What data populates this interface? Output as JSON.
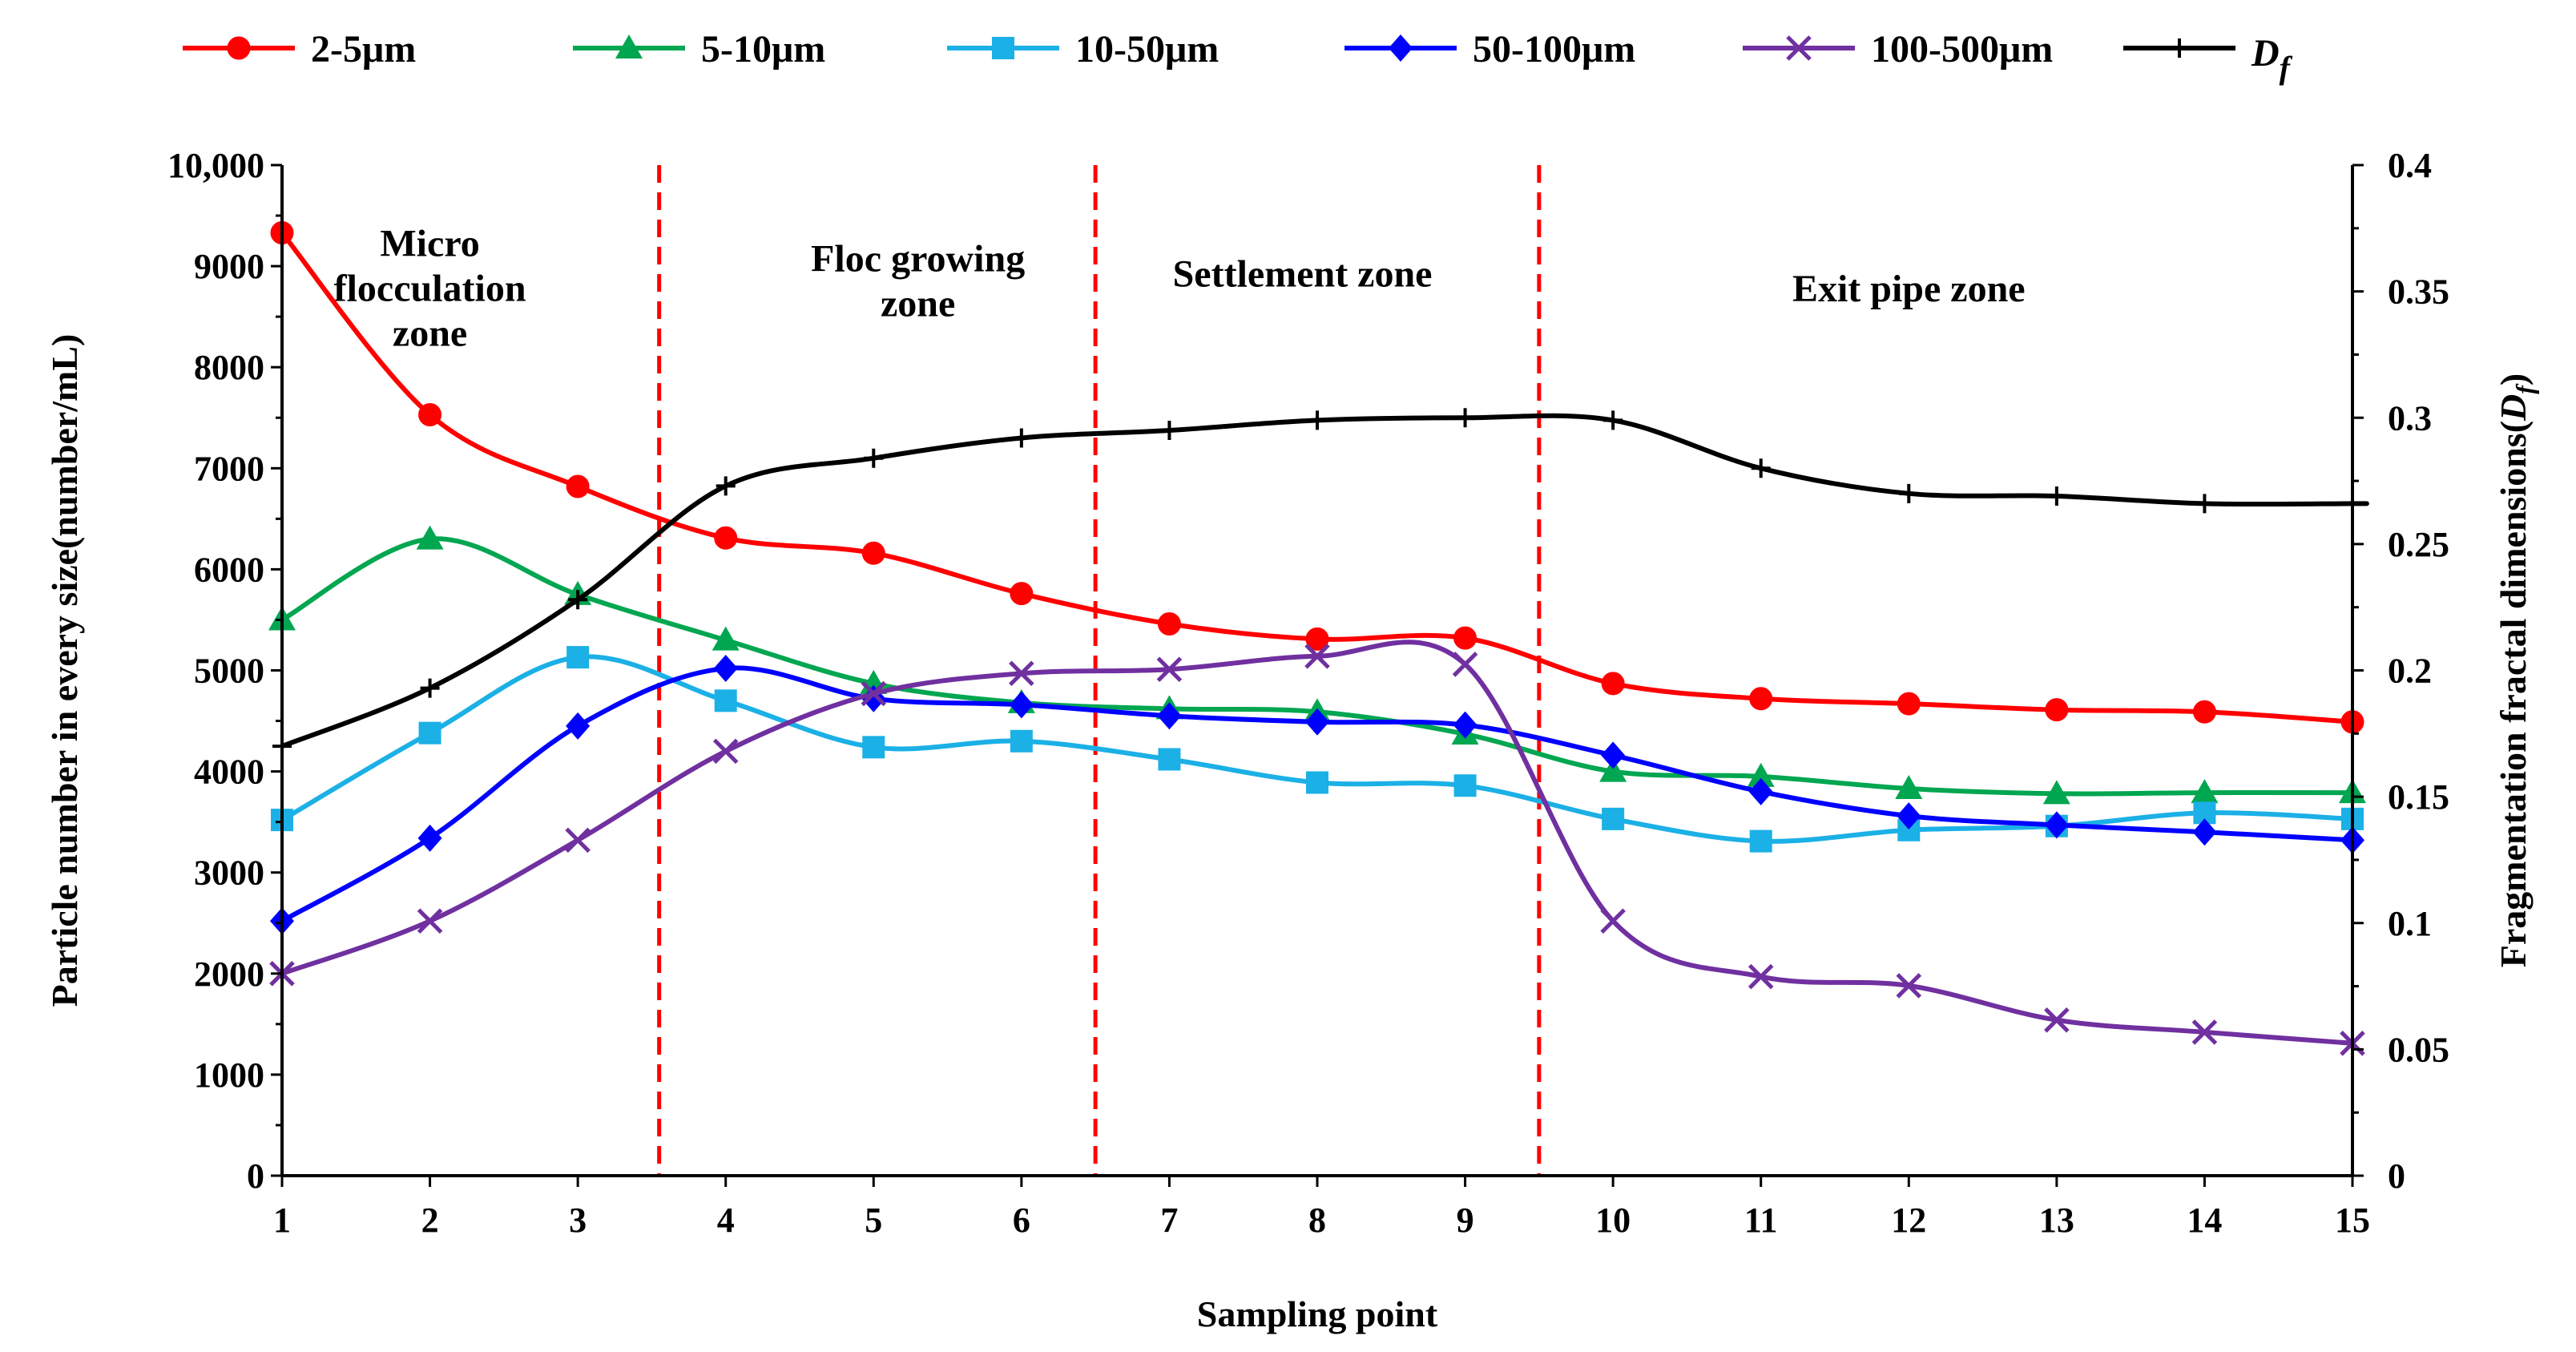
{
  "chart_data": {
    "type": "line",
    "x": [
      1,
      2,
      3,
      4,
      5,
      6,
      7,
      8,
      9,
      10,
      11,
      12,
      13,
      14,
      15
    ],
    "x_ticks": [
      "1",
      "2",
      "3",
      "4",
      "5",
      "6",
      "7",
      "8",
      "9",
      "10",
      "11",
      "12",
      "13",
      "14",
      "15"
    ],
    "xlabel": "Sampling point",
    "ylabel": "Particle number in every size(number/mL)",
    "y2label_prefix": "Fragmentation fractal dimensions(",
    "y2label_var": "D",
    "y2label_sub": "f",
    "y2label_suffix": ")",
    "ylim": [
      0,
      10000
    ],
    "y2lim": [
      0,
      0.4
    ],
    "y_ticks": [
      "0",
      "1000",
      "2000",
      "3000",
      "4000",
      "5000",
      "6000",
      "7000",
      "8000",
      "9000",
      "10,000"
    ],
    "y2_ticks": [
      "0",
      "0.05",
      "0.1",
      "0.15",
      "0.2",
      "0.25",
      "0.3",
      "0.35",
      "0.4"
    ],
    "y_tick_values": [
      0,
      1000,
      2000,
      3000,
      4000,
      5000,
      6000,
      7000,
      8000,
      9000,
      10000
    ],
    "y2_tick_values": [
      0,
      0.05,
      0.1,
      0.15,
      0.2,
      0.25,
      0.3,
      0.35,
      0.4
    ],
    "series": [
      {
        "name": "2-5μm",
        "color": "#ff0000",
        "marker": "circle",
        "axis": "left",
        "values": [
          9330,
          7530,
          6820,
          6310,
          6160,
          5760,
          5460,
          5310,
          5320,
          4870,
          4720,
          4670,
          4610,
          4590,
          4490
        ]
      },
      {
        "name": "5-10μm",
        "color": "#00a650",
        "marker": "triangle",
        "axis": "left",
        "values": [
          5500,
          6300,
          5750,
          5300,
          4870,
          4680,
          4620,
          4590,
          4370,
          4000,
          3950,
          3830,
          3780,
          3790,
          3790
        ]
      },
      {
        "name": "10-50μm",
        "color": "#1bb0e6",
        "marker": "square",
        "axis": "left",
        "values": [
          3520,
          4380,
          5130,
          4700,
          4240,
          4300,
          4120,
          3890,
          3860,
          3530,
          3310,
          3420,
          3460,
          3590,
          3530
        ]
      },
      {
        "name": "50-100μm",
        "color": "#0000ff",
        "marker": "diamond",
        "axis": "left",
        "values": [
          2520,
          3340,
          4450,
          5020,
          4720,
          4660,
          4550,
          4490,
          4460,
          4160,
          3800,
          3560,
          3470,
          3400,
          3320
        ]
      },
      {
        "name": "100-500μm",
        "color": "#7030a0",
        "marker": "x",
        "axis": "left",
        "values": [
          2000,
          2520,
          3320,
          4200,
          4770,
          4970,
          5010,
          5140,
          5060,
          2520,
          1970,
          1880,
          1540,
          1420,
          1310
        ]
      },
      {
        "name": "Df",
        "color": "#000000",
        "marker": "plus",
        "axis": "right",
        "values": [
          0.17,
          0.193,
          0.228,
          0.273,
          0.284,
          0.292,
          0.295,
          0.299,
          0.3,
          0.299,
          0.28,
          0.27,
          0.269,
          0.266,
          0.266
        ]
      }
    ],
    "legend": {
      "position": "top",
      "entries": [
        {
          "label": "2-5μm"
        },
        {
          "label": "5-10μm"
        },
        {
          "label": "10-50μm"
        },
        {
          "label": "50-100μm"
        },
        {
          "label": "100-500μm"
        },
        {
          "label_var": "D",
          "label_sub": "f"
        }
      ]
    },
    "zone_dividers_x": [
      3.55,
      6.5,
      9.5
    ],
    "zone_divider_color": "#ff0000",
    "zones": [
      {
        "lines": [
          "Micro",
          "flocculation",
          "zone"
        ],
        "x": 2.0,
        "y_top": 9100
      },
      {
        "lines": [
          "Floc growing",
          "zone"
        ],
        "x": 5.3,
        "y_top": 8950
      },
      {
        "lines": [
          "Settlement zone"
        ],
        "x": 7.9,
        "y_top": 8800
      },
      {
        "lines": [
          "Exit pipe zone"
        ],
        "x": 12.0,
        "y_top": 8650
      }
    ]
  }
}
